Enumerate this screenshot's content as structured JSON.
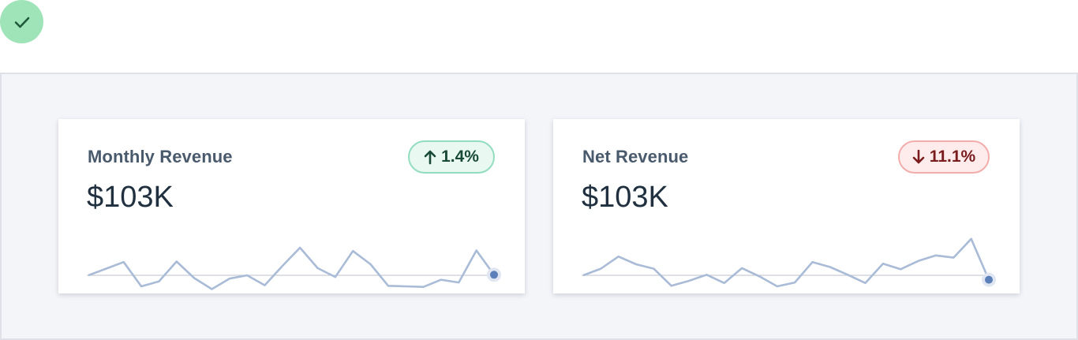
{
  "status": {
    "icon": "checkmark-icon",
    "color": "#9fe4b8"
  },
  "cards": [
    {
      "title": "Monthly Revenue",
      "value": "$103K",
      "delta": {
        "direction": "up",
        "icon": "arrow-up-icon",
        "text": "1.4%"
      },
      "series": [
        0,
        1.2,
        2.4,
        -2.0,
        -1.1,
        2.5,
        -0.5,
        -2.5,
        -0.6,
        0,
        -1.8,
        1.7,
        5.0,
        1.3,
        -0.3,
        4.4,
        2.0,
        -1.9,
        -2.0,
        -2.1,
        -0.8,
        -1.3,
        4.5,
        0.1
      ]
    },
    {
      "title": "Net Revenue",
      "value": "$103K",
      "delta": {
        "direction": "down",
        "icon": "arrow-down-icon",
        "text": "11.1%"
      },
      "series": [
        0,
        1.2,
        3.4,
        2.0,
        1.2,
        -1.9,
        -1.0,
        0.1,
        -1.4,
        1.3,
        -0.2,
        -2.0,
        -1.3,
        2.4,
        1.5,
        0.1,
        -1.4,
        2.1,
        1.1,
        2.6,
        3.6,
        3.2,
        6.6,
        -0.8
      ]
    }
  ],
  "chart_data": [
    {
      "type": "line",
      "series": [
        {
          "values": [
            0,
            1.2,
            2.4,
            -2.0,
            -1.1,
            2.5,
            -0.5,
            -2.5,
            -0.6,
            0,
            -1.8,
            1.7,
            5.0,
            1.3,
            -0.3,
            4.4,
            2.0,
            -1.9,
            -2.0,
            -2.1,
            -0.8,
            -1.3,
            4.5,
            0.1
          ]
        }
      ],
      "baseline": 0
    },
    {
      "type": "line",
      "series": [
        {
          "values": [
            0,
            1.2,
            3.4,
            2.0,
            1.2,
            -1.9,
            -1.0,
            0.1,
            -1.4,
            1.3,
            -0.2,
            -2.0,
            -1.3,
            2.4,
            1.5,
            0.1,
            -1.4,
            2.1,
            1.1,
            2.6,
            3.6,
            3.2,
            6.6,
            -0.8
          ]
        }
      ],
      "baseline": 0
    }
  ]
}
